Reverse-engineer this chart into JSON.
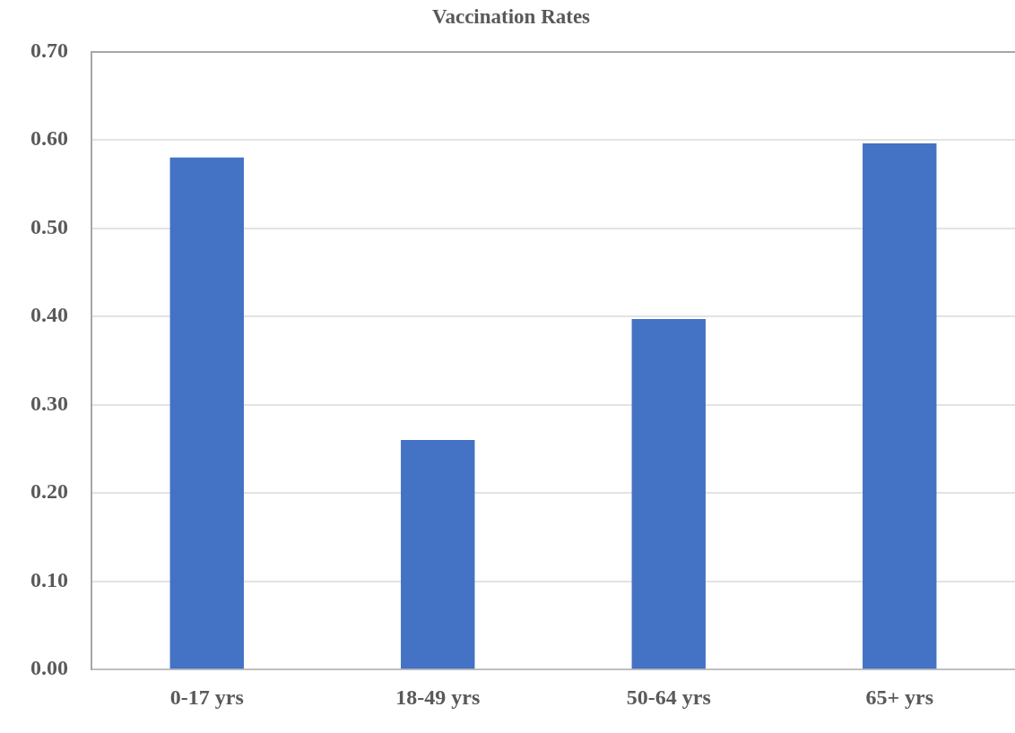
{
  "chart_data": {
    "type": "bar",
    "title": "Vaccination Rates",
    "categories": [
      "0-17 yrs",
      "18-49 yrs",
      "50-64 yrs",
      "65+ yrs"
    ],
    "values": [
      0.58,
      0.26,
      0.397,
      0.596
    ],
    "color": "#4472c4",
    "ylim": [
      0,
      0.7
    ],
    "yticks": [
      {
        "value": 0,
        "label": "0.00"
      },
      {
        "value": 0.1,
        "label": "0.10"
      },
      {
        "value": 0.2,
        "label": "0.20"
      },
      {
        "value": 0.3,
        "label": "0.30"
      },
      {
        "value": 0.4,
        "label": "0.40"
      },
      {
        "value": 0.5,
        "label": "0.50"
      },
      {
        "value": 0.6,
        "label": "0.60"
      },
      {
        "value": 0.7,
        "label": "0.70"
      }
    ],
    "grid": "y"
  }
}
